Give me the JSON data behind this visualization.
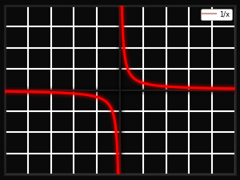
{
  "legend_label": "1/x",
  "line_color": "#ff0000",
  "legend_line_color": "#cc9999",
  "background_color": "#0a0a0a",
  "grid_color": "#ffffff",
  "frame_color": "#1a1a1a",
  "xlim": [
    -10,
    10
  ],
  "ylim": [
    -6,
    6
  ],
  "xticks_step": 2,
  "yticks_step": 1.5,
  "line_width": 2.2,
  "grid_linewidth": 1.5,
  "figsize": [
    3.0,
    2.25
  ],
  "dpi": 100
}
